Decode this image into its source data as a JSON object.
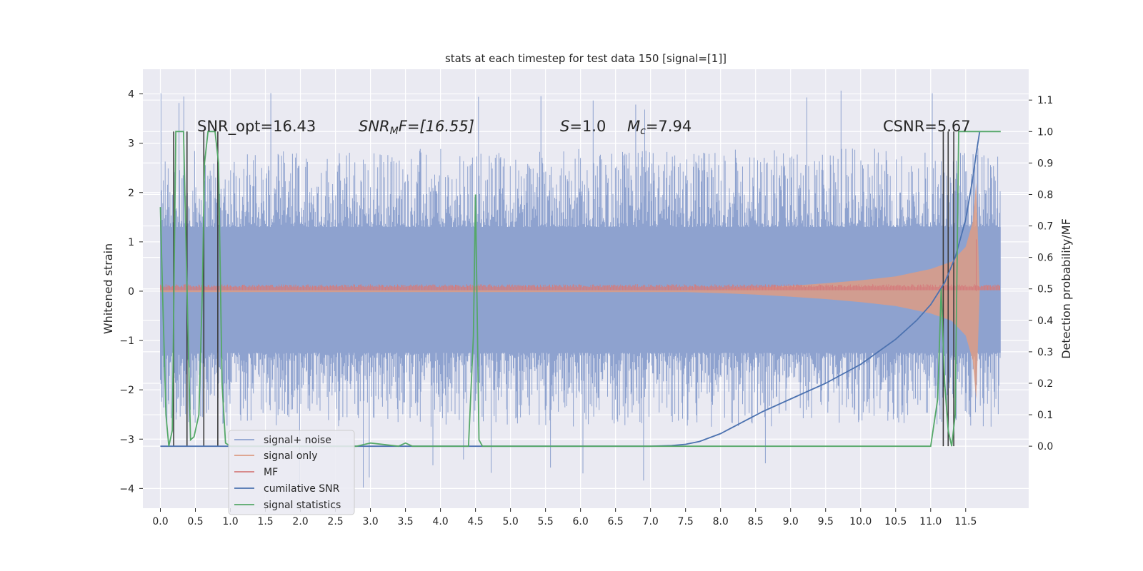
{
  "chart_data": {
    "type": "line",
    "title": "stats at each timestep for test data 150 [signal=[1]]",
    "ylabel": "Whitened strain",
    "ylabel_right": "Detection probability/MF",
    "xlim": [
      -0.25,
      12.4
    ],
    "ylim": [
      -4.4,
      4.5
    ],
    "ylim_right": [
      -0.197,
      1.198
    ],
    "x_ticks": [
      0.0,
      0.5,
      1.0,
      1.5,
      2.0,
      2.5,
      3.0,
      3.5,
      4.0,
      4.5,
      5.0,
      5.5,
      6.0,
      6.5,
      7.0,
      7.5,
      8.0,
      8.5,
      9.0,
      9.5,
      10.0,
      10.5,
      11.0,
      11.5
    ],
    "x_tick_labels": [
      "0.0",
      "0.5",
      "1.0",
      "1.5",
      "2.0",
      "2.5",
      "3.0",
      "3.5",
      "4.0",
      "4.5",
      "5.0",
      "5.5",
      "6.0",
      "6.5",
      "7.0",
      "7.5",
      "8.0",
      "8.5",
      "9.0",
      "9.5",
      "10.0",
      "10.5",
      "11.0",
      "11.5"
    ],
    "y_ticks": [
      4,
      3,
      2,
      1,
      0,
      -1,
      -2,
      -3,
      -4
    ],
    "y_tick_labels": [
      "4",
      "3",
      "2",
      "1",
      "0",
      "−1",
      "−2",
      "−3",
      "−4"
    ],
    "y2_ticks": [
      1.1,
      1.0,
      0.9,
      0.8,
      0.7,
      0.6,
      0.5,
      0.4,
      0.3,
      0.2,
      0.1,
      0.0
    ],
    "y2_tick_labels": [
      "1.1",
      "1.0",
      "0.9",
      "0.8",
      "0.7",
      "0.6",
      "0.5",
      "0.4",
      "0.3",
      "0.2",
      "0.1",
      "0.0"
    ],
    "grid": true,
    "legend_placement": "lower-left",
    "annotations": {
      "snr_opt": "SNR_opt=16.43",
      "snr_mf_sym": "SNR",
      "snr_mf_sub": "M",
      "snr_mf_rest": "F=[16.55]",
      "s_sym": "S",
      "s_rest": "=1.0",
      "mc_sym": "M",
      "mc_sub": "c",
      "mc_rest": "=7.94",
      "csnr": "CSNR=5.67"
    },
    "noise": {
      "x_end": 12.0,
      "band_low": -1.25,
      "band_high": 1.3,
      "peak_high": 4.1,
      "peak_low": -4.0
    },
    "signal_only": {
      "x": [
        0.0,
        7.5,
        8.0,
        8.5,
        9.0,
        9.5,
        10.0,
        10.5,
        11.0,
        11.3,
        11.5,
        11.6,
        11.65,
        11.7
      ],
      "amplitude": [
        0.02,
        0.02,
        0.04,
        0.07,
        0.11,
        0.16,
        0.22,
        0.3,
        0.45,
        0.6,
        0.9,
        1.4,
        2.2,
        0.0
      ]
    },
    "mf": {
      "x_end": 12.0,
      "base": 0.08,
      "amp": 0.06,
      "spike_x": 11.65,
      "spike_y": 1.05
    },
    "series": [
      {
        "name": "signal+ noise",
        "color": "#8ea2cf"
      },
      {
        "name": "signal only",
        "color": "#dd9c85"
      },
      {
        "name": "MF",
        "color": "#d47c7c"
      },
      {
        "name": "cumilative SNR",
        "axis": "right",
        "color": "#4c72b0",
        "x": [
          0.0,
          1.0,
          2.0,
          3.0,
          4.0,
          5.0,
          6.0,
          7.0,
          7.3,
          7.5,
          7.7,
          8.0,
          8.3,
          8.6,
          9.0,
          9.5,
          10.0,
          10.5,
          10.8,
          11.0,
          11.2,
          11.35,
          11.5,
          11.6,
          11.65,
          11.7
        ],
        "y": [
          0.0,
          0.0,
          0.0,
          0.0,
          0.0,
          0.0,
          0.0,
          0.0,
          0.002,
          0.006,
          0.015,
          0.04,
          0.075,
          0.11,
          0.15,
          0.2,
          0.26,
          0.34,
          0.4,
          0.45,
          0.52,
          0.6,
          0.72,
          0.85,
          0.93,
          1.0
        ]
      },
      {
        "name": "signal statistics",
        "axis": "right",
        "color": "#55a868",
        "x": [
          0.0,
          0.03,
          0.08,
          0.12,
          0.17,
          0.22,
          0.28,
          0.33,
          0.38,
          0.43,
          0.48,
          0.55,
          0.6,
          0.63,
          0.68,
          0.73,
          0.78,
          0.83,
          0.88,
          0.93,
          1.0,
          2.0,
          2.8,
          3.0,
          3.4,
          3.5,
          3.6,
          4.0,
          4.4,
          4.47,
          4.5,
          4.55,
          4.6,
          5.0,
          10.0,
          10.3,
          11.0,
          11.1,
          11.15,
          11.2,
          11.25,
          11.3,
          11.35,
          11.4,
          11.5,
          11.6,
          11.7,
          12.0
        ],
        "y": [
          0.76,
          0.5,
          0.1,
          0.0,
          0.05,
          1.0,
          1.0,
          1.0,
          0.5,
          0.02,
          0.03,
          0.1,
          0.5,
          0.9,
          1.0,
          1.0,
          1.0,
          0.9,
          0.2,
          0.01,
          0.0,
          0.0,
          0.0,
          0.01,
          0.0,
          0.01,
          0.0,
          0.0,
          0.0,
          0.35,
          0.8,
          0.02,
          0.0,
          0.0,
          0.0,
          0.0,
          0.0,
          0.15,
          0.5,
          0.2,
          0.05,
          0.0,
          0.1,
          1.0,
          1.0,
          1.0,
          1.0,
          1.0
        ]
      }
    ],
    "vlines_right": [
      {
        "x": 0.19,
        "y0": 0.0,
        "y1": 1.0
      },
      {
        "x": 0.38,
        "y0": 0.0,
        "y1": 1.0
      },
      {
        "x": 0.62,
        "y0": 0.0,
        "y1": 1.0
      },
      {
        "x": 0.82,
        "y0": 0.0,
        "y1": 1.0
      },
      {
        "x": 11.18,
        "y0": 0.0,
        "y1": 1.0
      },
      {
        "x": 11.25,
        "y0": 0.0,
        "y1": 1.0
      },
      {
        "x": 11.33,
        "y0": 0.0,
        "y1": 1.0
      }
    ]
  }
}
